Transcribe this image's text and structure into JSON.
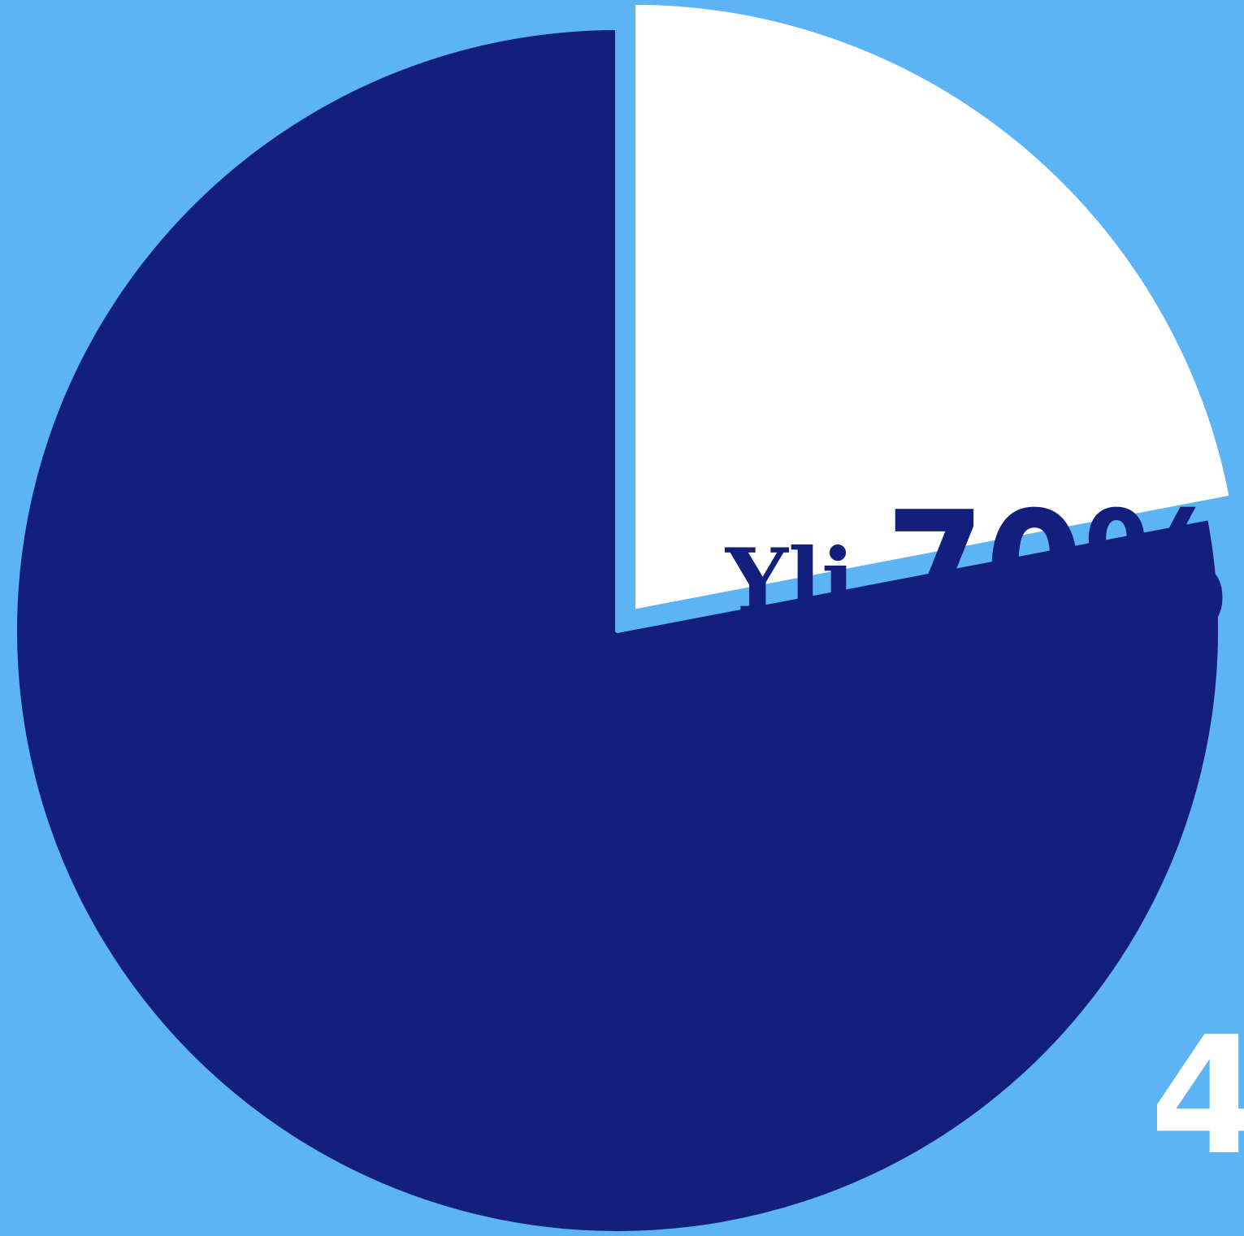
{
  "chart_data": {
    "type": "pie",
    "title": "",
    "slices": [
      {
        "value": 78,
        "color": "#131f7d"
      },
      {
        "value": 22,
        "color": "#ffffff"
      }
    ],
    "annotation": {
      "prefix": "Yli",
      "value_text": "70%"
    }
  },
  "background_color": "#5db4f4",
  "corner_glyph": "4"
}
